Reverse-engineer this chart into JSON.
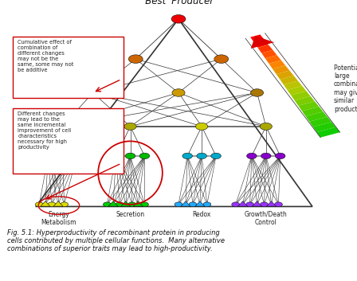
{
  "title": "'Best' Producer",
  "bg_color": "#ffffff",
  "categories": [
    "Energy\nMetabolism",
    "Secretion",
    "Redox",
    "Growth/Death\nControl"
  ],
  "fig_text": "Fig. 5.1: Hyperproductivity of recombinant protein in producing\ncells contributed by multiple cellular functions.  Many alternative\ncombinations of superior traits may lead to high-productivity.",
  "annotation1": "Cumulative effect of\ncombination of\ndifferent changes\nmay not be the\nsame, some may not\nbe additive",
  "annotation2": "Different changes\nmay lead to the\nsame incremental\nimprovement of cell\ncharacteristics\nnecessary for high\nproductivity",
  "right_text": "Potentially a\nlarge\ncombination\nmay give rise to\nsimilar\nproductivity.",
  "line_color": "#333333"
}
